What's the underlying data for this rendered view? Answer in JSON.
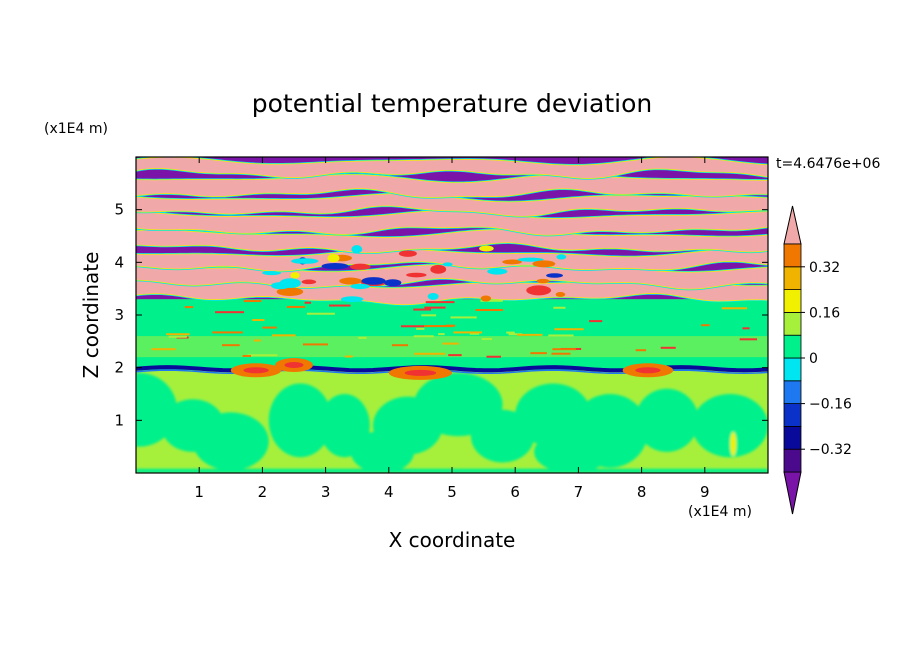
{
  "chart_data": {
    "type": "heatmap",
    "title": "potential temperature deviation",
    "xlabel": "X coordinate",
    "ylabel": "Z coordinate",
    "x_unit_label": "(x1E4 m)",
    "y_unit_label": "(x1E4 m)",
    "time_label": "t=4.6476e+06",
    "xlim": [
      0,
      10
    ],
    "ylim": [
      0,
      6
    ],
    "x_ticks": [
      "1",
      "2",
      "3",
      "4",
      "5",
      "6",
      "7",
      "8",
      "9"
    ],
    "y_ticks": [
      "1",
      "2",
      "3",
      "4",
      "5"
    ],
    "colorbar": {
      "labels": [
        "0.32",
        "0.16",
        "0",
        "−0.16",
        "−0.32"
      ],
      "label_values": [
        0.32,
        0.16,
        0,
        -0.16,
        -0.32
      ],
      "levels": [
        -0.4,
        -0.32,
        -0.24,
        -0.16,
        -0.08,
        0,
        0.08,
        0.16,
        0.24,
        0.32,
        0.4
      ],
      "colors": [
        "#4b0a8c",
        "#0a0a9a",
        "#0a32c8",
        "#1e78f0",
        "#00e6f0",
        "#00f08c",
        "#a6f03c",
        "#f0f000",
        "#f0b400",
        "#f07800",
        "#f03232",
        "#f0a0a0"
      ],
      "under_color": "#7a14a8",
      "over_color": "#f0a8a8"
    },
    "layers": [
      {
        "z_range": [
          0,
          1.9
        ],
        "dominant": "0 to 0.08 with patches of -0.08 to 0"
      },
      {
        "z_range": [
          1.9,
          2.0
        ],
        "dominant": "band of -0.32 to -0.16 with 0.24 to 0.4 patches"
      },
      {
        "z_range": [
          2.0,
          3.3
        ],
        "dominant": "-0.08 to 0.08 with thin 0.16 to 0.32 streaks"
      },
      {
        "z_range": [
          3.3,
          6.0
        ],
        "dominant": "alternating layers below -0.4 and above 0.4"
      }
    ]
  }
}
